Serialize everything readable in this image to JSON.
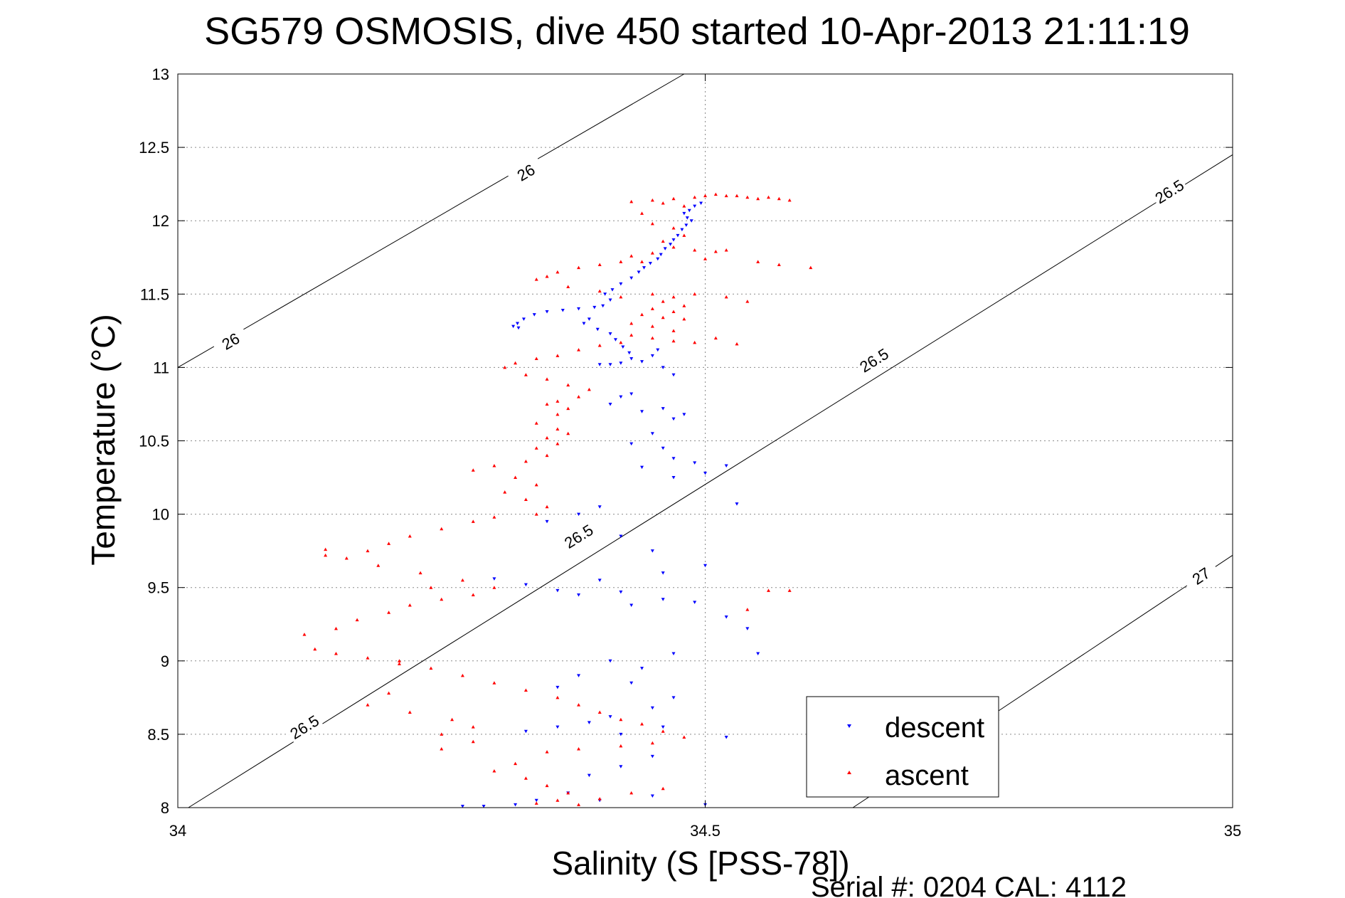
{
  "chart_data": {
    "type": "scatter",
    "title": "SG579 OSMOSIS, dive 450 started 10-Apr-2013 21:11:19",
    "xlabel": "Salinity (S [PSS-78])",
    "ylabel": "Temperature (°C)",
    "footer": "Serial #: 0204  CAL: 4112",
    "xlim": [
      34,
      35
    ],
    "ylim": [
      8,
      13
    ],
    "xticks": [
      34,
      34.5,
      35
    ],
    "xtick_labels": [
      "34",
      "34.5",
      "35"
    ],
    "yticks": [
      8,
      8.5,
      9,
      9.5,
      10,
      10.5,
      11,
      11.5,
      12,
      12.5,
      13
    ],
    "ytick_labels": [
      "8",
      "8.5",
      "9",
      "9.5",
      "10",
      "10.5",
      "11",
      "11.5",
      "12",
      "12.5",
      "13"
    ],
    "grid": true,
    "legend": {
      "placement": "bottom-right",
      "entries": [
        {
          "label": "descent",
          "color": "#0000ff",
          "marker": "triangle-down"
        },
        {
          "label": "ascent",
          "color": "#ff0000",
          "marker": "triangle-up"
        }
      ]
    },
    "contours": [
      {
        "label": "26",
        "line": [
          [
            34,
            11
          ],
          [
            34.48,
            13
          ]
        ],
        "label_positions": [
          [
            34.05,
            11.18
          ],
          [
            34.33,
            12.33
          ]
        ]
      },
      {
        "label": "26.5",
        "line": [
          [
            34.01,
            8
          ],
          [
            35,
            12.45
          ]
        ],
        "label_positions": [
          [
            34.12,
            8.55
          ],
          [
            34.38,
            9.85
          ],
          [
            34.66,
            11.05
          ],
          [
            34.94,
            12.2
          ]
        ]
      },
      {
        "label": "27",
        "line": [
          [
            34.64,
            8
          ],
          [
            35,
            9.72
          ]
        ],
        "label_positions": [
          [
            34.97,
            9.58
          ]
        ]
      }
    ],
    "series": [
      {
        "name": "descent",
        "color": "#0000ff",
        "points": [
          [
            34.496,
            12.12
          ],
          [
            34.49,
            12.1
          ],
          [
            34.485,
            12.07
          ],
          [
            34.48,
            12.05
          ],
          [
            34.483,
            12.02
          ],
          [
            34.487,
            12.0
          ],
          [
            34.482,
            11.97
          ],
          [
            34.478,
            11.94
          ],
          [
            34.474,
            11.9
          ],
          [
            34.47,
            11.87
          ],
          [
            34.467,
            11.84
          ],
          [
            34.462,
            11.81
          ],
          [
            34.458,
            11.77
          ],
          [
            34.455,
            11.74
          ],
          [
            34.448,
            11.71
          ],
          [
            34.442,
            11.68
          ],
          [
            34.437,
            11.65
          ],
          [
            34.43,
            11.61
          ],
          [
            34.42,
            11.57
          ],
          [
            34.412,
            11.53
          ],
          [
            34.405,
            11.5
          ],
          [
            34.41,
            11.46
          ],
          [
            34.403,
            11.42
          ],
          [
            34.395,
            11.41
          ],
          [
            34.38,
            11.4
          ],
          [
            34.365,
            11.39
          ],
          [
            34.35,
            11.38
          ],
          [
            34.338,
            11.36
          ],
          [
            34.328,
            11.33
          ],
          [
            34.322,
            11.3
          ],
          [
            34.318,
            11.28
          ],
          [
            34.323,
            11.27
          ],
          [
            34.39,
            11.33
          ],
          [
            34.385,
            11.3
          ],
          [
            34.398,
            11.26
          ],
          [
            34.41,
            11.23
          ],
          [
            34.415,
            11.19
          ],
          [
            34.422,
            11.14
          ],
          [
            34.428,
            11.1
          ],
          [
            34.43,
            11.06
          ],
          [
            34.42,
            11.03
          ],
          [
            34.41,
            11.02
          ],
          [
            34.4,
            11.02
          ],
          [
            34.44,
            11.04
          ],
          [
            34.45,
            11.08
          ],
          [
            34.455,
            11.12
          ],
          [
            34.46,
            11.0
          ],
          [
            34.47,
            10.95
          ],
          [
            34.43,
            10.82
          ],
          [
            34.42,
            10.8
          ],
          [
            34.41,
            10.75
          ],
          [
            34.44,
            10.7
          ],
          [
            34.46,
            10.72
          ],
          [
            34.47,
            10.65
          ],
          [
            34.48,
            10.68
          ],
          [
            34.45,
            10.55
          ],
          [
            34.43,
            10.48
          ],
          [
            34.46,
            10.45
          ],
          [
            34.47,
            10.38
          ],
          [
            34.44,
            10.32
          ],
          [
            34.49,
            10.35
          ],
          [
            34.52,
            10.33
          ],
          [
            34.47,
            10.25
          ],
          [
            34.5,
            10.28
          ],
          [
            34.53,
            10.07
          ],
          [
            34.4,
            10.05
          ],
          [
            34.38,
            10.0
          ],
          [
            34.35,
            9.95
          ],
          [
            34.42,
            9.85
          ],
          [
            34.45,
            9.75
          ],
          [
            34.5,
            9.65
          ],
          [
            34.46,
            9.6
          ],
          [
            34.4,
            9.55
          ],
          [
            34.33,
            9.52
          ],
          [
            34.3,
            9.56
          ],
          [
            34.36,
            9.48
          ],
          [
            34.38,
            9.45
          ],
          [
            34.42,
            9.47
          ],
          [
            34.46,
            9.42
          ],
          [
            34.43,
            9.38
          ],
          [
            34.49,
            9.4
          ],
          [
            34.52,
            9.3
          ],
          [
            34.54,
            9.22
          ],
          [
            34.55,
            9.05
          ],
          [
            34.47,
            9.05
          ],
          [
            34.44,
            8.95
          ],
          [
            34.41,
            9.0
          ],
          [
            34.38,
            8.9
          ],
          [
            34.36,
            8.82
          ],
          [
            34.43,
            8.85
          ],
          [
            34.47,
            8.75
          ],
          [
            34.45,
            8.68
          ],
          [
            34.41,
            8.62
          ],
          [
            34.39,
            8.58
          ],
          [
            34.36,
            8.55
          ],
          [
            34.33,
            8.52
          ],
          [
            34.42,
            8.5
          ],
          [
            34.46,
            8.55
          ],
          [
            34.52,
            8.48
          ],
          [
            34.45,
            8.35
          ],
          [
            34.42,
            8.28
          ],
          [
            34.39,
            8.22
          ],
          [
            34.37,
            8.1
          ],
          [
            34.34,
            8.05
          ],
          [
            34.32,
            8.02
          ],
          [
            34.29,
            8.01
          ],
          [
            34.27,
            8.01
          ],
          [
            34.4,
            8.05
          ],
          [
            34.45,
            8.08
          ],
          [
            34.5,
            8.02
          ]
        ]
      },
      {
        "name": "ascent",
        "color": "#ff0000",
        "points": [
          [
            34.55,
            12.15
          ],
          [
            34.56,
            12.16
          ],
          [
            34.57,
            12.15
          ],
          [
            34.58,
            12.14
          ],
          [
            34.54,
            12.16
          ],
          [
            34.53,
            12.17
          ],
          [
            34.52,
            12.17
          ],
          [
            34.51,
            12.18
          ],
          [
            34.5,
            12.17
          ],
          [
            34.49,
            12.16
          ],
          [
            34.47,
            12.15
          ],
          [
            34.45,
            12.14
          ],
          [
            34.43,
            12.13
          ],
          [
            34.46,
            12.12
          ],
          [
            34.48,
            12.1
          ],
          [
            34.44,
            12.05
          ],
          [
            34.45,
            11.98
          ],
          [
            34.47,
            11.95
          ],
          [
            34.48,
            11.9
          ],
          [
            34.46,
            11.86
          ],
          [
            34.47,
            11.82
          ],
          [
            34.49,
            11.8
          ],
          [
            34.51,
            11.79
          ],
          [
            34.52,
            11.8
          ],
          [
            34.45,
            11.78
          ],
          [
            34.43,
            11.76
          ],
          [
            34.44,
            11.72
          ],
          [
            34.5,
            11.74
          ],
          [
            34.55,
            11.72
          ],
          [
            34.57,
            11.7
          ],
          [
            34.6,
            11.68
          ],
          [
            34.42,
            11.72
          ],
          [
            34.4,
            11.7
          ],
          [
            34.38,
            11.68
          ],
          [
            34.36,
            11.65
          ],
          [
            34.35,
            11.62
          ],
          [
            34.34,
            11.6
          ],
          [
            34.37,
            11.55
          ],
          [
            34.4,
            11.52
          ],
          [
            34.42,
            11.48
          ],
          [
            34.45,
            11.5
          ],
          [
            34.47,
            11.48
          ],
          [
            34.49,
            11.5
          ],
          [
            34.52,
            11.48
          ],
          [
            34.54,
            11.45
          ],
          [
            34.46,
            11.45
          ],
          [
            34.48,
            11.42
          ],
          [
            34.45,
            11.4
          ],
          [
            34.47,
            11.38
          ],
          [
            34.44,
            11.36
          ],
          [
            34.46,
            11.34
          ],
          [
            34.48,
            11.33
          ],
          [
            34.43,
            11.3
          ],
          [
            34.45,
            11.28
          ],
          [
            34.47,
            11.25
          ],
          [
            34.43,
            11.22
          ],
          [
            34.45,
            11.2
          ],
          [
            34.47,
            11.18
          ],
          [
            34.49,
            11.17
          ],
          [
            34.51,
            11.2
          ],
          [
            34.53,
            11.16
          ],
          [
            34.42,
            11.17
          ],
          [
            34.4,
            11.15
          ],
          [
            34.38,
            11.12
          ],
          [
            34.36,
            11.08
          ],
          [
            34.34,
            11.06
          ],
          [
            34.32,
            11.03
          ],
          [
            34.31,
            11.0
          ],
          [
            34.33,
            10.95
          ],
          [
            34.35,
            10.92
          ],
          [
            34.37,
            10.88
          ],
          [
            34.39,
            10.85
          ],
          [
            34.38,
            10.8
          ],
          [
            34.36,
            10.77
          ],
          [
            34.35,
            10.75
          ],
          [
            34.37,
            10.72
          ],
          [
            34.36,
            10.68
          ],
          [
            34.34,
            10.62
          ],
          [
            34.36,
            10.58
          ],
          [
            34.37,
            10.55
          ],
          [
            34.35,
            10.52
          ],
          [
            34.36,
            10.48
          ],
          [
            34.34,
            10.45
          ],
          [
            34.35,
            10.4
          ],
          [
            34.33,
            10.36
          ],
          [
            34.3,
            10.33
          ],
          [
            34.28,
            10.3
          ],
          [
            34.32,
            10.25
          ],
          [
            34.34,
            10.2
          ],
          [
            34.31,
            10.15
          ],
          [
            34.33,
            10.1
          ],
          [
            34.35,
            10.05
          ],
          [
            34.34,
            10.0
          ],
          [
            34.3,
            9.98
          ],
          [
            34.28,
            9.95
          ],
          [
            34.25,
            9.9
          ],
          [
            34.22,
            9.85
          ],
          [
            34.2,
            9.8
          ],
          [
            34.18,
            9.75
          ],
          [
            34.14,
            9.76
          ],
          [
            34.16,
            9.7
          ],
          [
            34.19,
            9.65
          ],
          [
            34.23,
            9.6
          ],
          [
            34.27,
            9.55
          ],
          [
            34.3,
            9.5
          ],
          [
            34.28,
            9.45
          ],
          [
            34.25,
            9.42
          ],
          [
            34.22,
            9.38
          ],
          [
            34.2,
            9.33
          ],
          [
            34.17,
            9.28
          ],
          [
            34.15,
            9.22
          ],
          [
            34.12,
            9.18
          ],
          [
            34.13,
            9.08
          ],
          [
            34.15,
            9.05
          ],
          [
            34.18,
            9.02
          ],
          [
            34.21,
            8.98
          ],
          [
            34.24,
            8.95
          ],
          [
            34.27,
            8.9
          ],
          [
            34.3,
            8.85
          ],
          [
            34.33,
            8.8
          ],
          [
            34.36,
            8.75
          ],
          [
            34.38,
            8.7
          ],
          [
            34.4,
            8.65
          ],
          [
            34.42,
            8.6
          ],
          [
            34.44,
            8.57
          ],
          [
            34.46,
            8.52
          ],
          [
            34.48,
            8.48
          ],
          [
            34.45,
            8.44
          ],
          [
            34.42,
            8.42
          ],
          [
            34.38,
            8.4
          ],
          [
            34.35,
            8.38
          ],
          [
            34.32,
            8.3
          ],
          [
            34.3,
            8.25
          ],
          [
            34.33,
            8.2
          ],
          [
            34.35,
            8.15
          ],
          [
            34.37,
            8.1
          ],
          [
            34.36,
            8.05
          ],
          [
            34.34,
            8.03
          ],
          [
            34.38,
            8.02
          ],
          [
            34.4,
            8.06
          ],
          [
            34.43,
            8.1
          ],
          [
            34.46,
            8.13
          ],
          [
            34.2,
            8.78
          ],
          [
            34.18,
            8.7
          ],
          [
            34.22,
            8.65
          ],
          [
            34.26,
            8.6
          ],
          [
            34.28,
            8.55
          ],
          [
            34.25,
            8.5
          ],
          [
            34.28,
            8.45
          ],
          [
            34.25,
            8.4
          ],
          [
            34.21,
            9.0
          ],
          [
            34.24,
            9.5
          ],
          [
            34.14,
            9.72
          ],
          [
            34.56,
            9.48
          ],
          [
            34.58,
            9.48
          ],
          [
            34.54,
            9.35
          ]
        ]
      }
    ]
  }
}
